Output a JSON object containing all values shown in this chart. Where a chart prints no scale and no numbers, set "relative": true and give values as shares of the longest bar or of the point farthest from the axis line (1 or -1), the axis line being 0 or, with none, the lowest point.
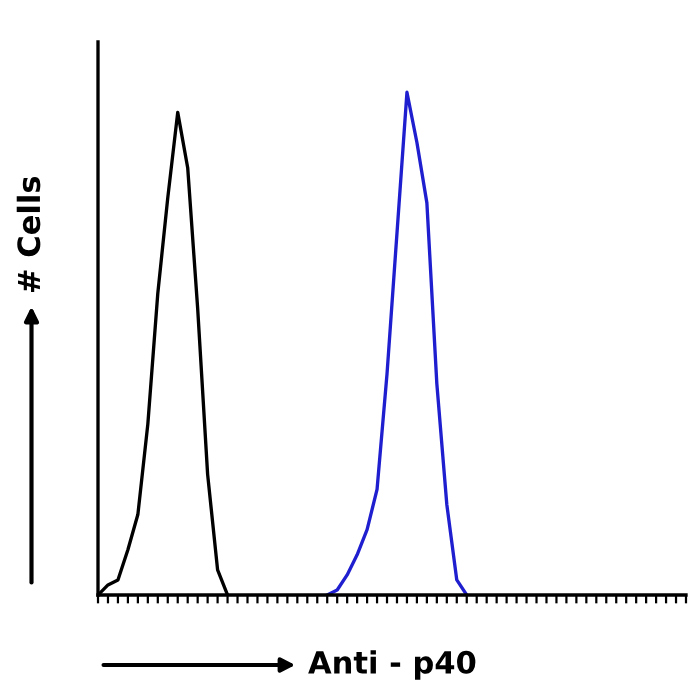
{
  "chart_data": {
    "type": "line",
    "relative": true,
    "xlabel": "Anti - p40",
    "ylabel": "# Cells",
    "tick_labels": false,
    "grid": false,
    "legend": false,
    "marker": "none",
    "line_style": "solid",
    "categories": [
      null,
      null,
      null,
      null,
      null,
      null,
      null,
      null,
      null,
      null,
      null,
      null,
      null,
      null,
      null,
      null,
      null,
      null,
      null,
      null,
      null,
      null,
      null,
      null,
      null,
      null,
      null,
      null,
      null,
      null,
      null,
      null,
      null,
      null,
      null,
      null,
      null,
      null,
      null,
      null,
      null,
      null,
      null,
      null,
      null,
      null,
      null,
      null,
      null,
      null,
      null,
      null,
      null,
      null,
      null,
      null,
      null,
      null,
      null,
      null
    ],
    "series": [
      {
        "color": "#000000",
        "values": [
          0,
          0.02,
          0.03,
          0.09,
          0.16,
          0.34,
          0.6,
          0.79,
          0.96,
          0.85,
          0.57,
          0.24,
          0.05,
          0,
          null,
          null,
          null,
          null,
          null,
          null,
          null,
          null,
          null,
          null,
          null,
          null,
          null,
          null,
          null,
          null,
          null,
          null,
          null,
          null,
          null,
          null,
          null,
          null,
          null,
          null,
          null,
          null,
          null,
          null,
          null,
          null,
          null,
          null,
          null,
          null,
          null,
          null,
          null,
          null,
          null,
          null,
          null,
          null,
          null,
          null
        ]
      },
      {
        "color": "#1f1fd0",
        "values": [
          null,
          null,
          null,
          null,
          null,
          null,
          null,
          null,
          null,
          null,
          null,
          null,
          null,
          null,
          null,
          null,
          null,
          null,
          null,
          null,
          null,
          null,
          null,
          0,
          0.01,
          0.04,
          0.08,
          0.13,
          0.21,
          0.44,
          0.72,
          1,
          0.9,
          0.78,
          0.42,
          0.18,
          0.03,
          0,
          null,
          null,
          null,
          null,
          null,
          null,
          null,
          null,
          null,
          null,
          null,
          null,
          null,
          null,
          null,
          null,
          null,
          null,
          null,
          null,
          null,
          null
        ]
      }
    ]
  }
}
